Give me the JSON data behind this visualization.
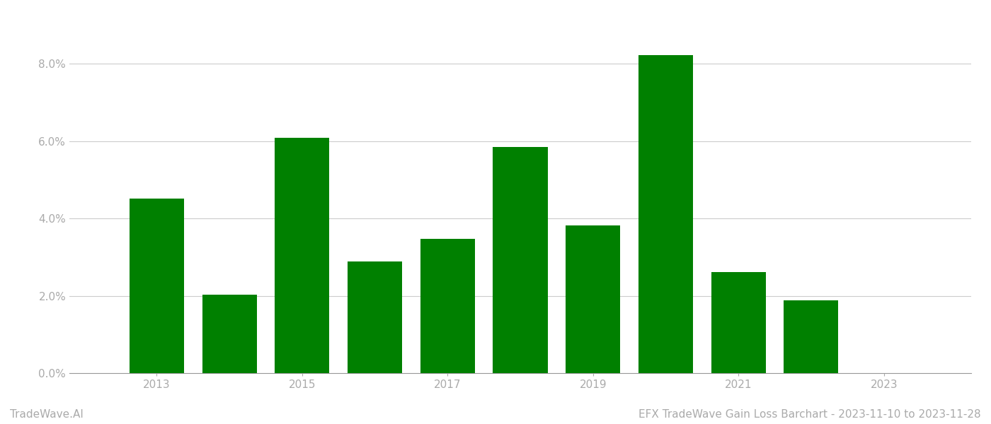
{
  "years": [
    2013,
    2014,
    2015,
    2016,
    2017,
    2018,
    2019,
    2020,
    2021,
    2022
  ],
  "values": [
    0.0452,
    0.0202,
    0.0608,
    0.0288,
    0.0348,
    0.0585,
    0.0382,
    0.0822,
    0.0262,
    0.0188
  ],
  "bar_color": "#008000",
  "background_color": "#ffffff",
  "title": "EFX TradeWave Gain Loss Barchart - 2023-11-10 to 2023-11-28",
  "watermark": "TradeWave.AI",
  "ylim": [
    0,
    0.091
  ],
  "yticks": [
    0.0,
    0.02,
    0.04,
    0.06,
    0.08
  ],
  "xtick_labels": [
    "2013",
    "2015",
    "2017",
    "2019",
    "2021",
    "2023"
  ],
  "xtick_positions": [
    2013,
    2015,
    2017,
    2019,
    2021,
    2023
  ],
  "xlim": [
    2011.8,
    2024.2
  ],
  "bar_width": 0.75,
  "grid_color": "#cccccc",
  "tick_color": "#aaaaaa",
  "title_fontsize": 11,
  "watermark_fontsize": 11,
  "axis_label_fontsize": 11
}
